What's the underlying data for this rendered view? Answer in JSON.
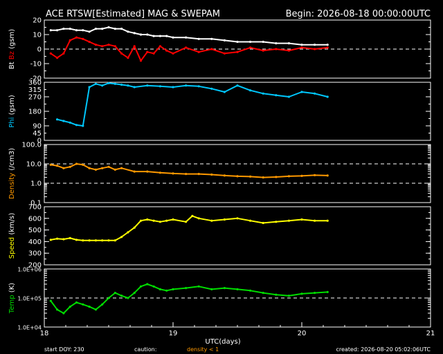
{
  "header": {
    "title": "ACE RTSW[Estimated] MAG & SWEPAM",
    "begin": "Begin: 2026-08-18 00:00:00UTC"
  },
  "footer": {
    "start_doy": "start DOY: 230",
    "caution": "caution:",
    "density_note": "density < 1",
    "created": "created: 2026-08-20 05:02:06UTC"
  },
  "colors": {
    "bt": "#ffffff",
    "bz": "#ff0000",
    "phi": "#00c8ff",
    "density": "#ff9900",
    "speed": "#ffff00",
    "temp": "#00dd00",
    "frame": "#ffffff",
    "background": "#000000"
  },
  "chart_data": {
    "type": "line",
    "x_axis": {
      "label": "UTC(days)",
      "range": [
        18,
        21
      ],
      "ticks": [
        18,
        19,
        20,
        21
      ],
      "tick_labels": [
        "18",
        "19",
        "20",
        "21"
      ]
    },
    "panels": [
      {
        "id": "mag",
        "ylabel_parts": [
          {
            "text": "Bt",
            "color": "#ffffff"
          },
          {
            "text": "Bz",
            "color": "#ff0000"
          },
          {
            "text": "(gsm)",
            "color": "#ffffff"
          }
        ],
        "scale": "linear",
        "ylim": [
          -20,
          20
        ],
        "ticks": [
          -20,
          -10,
          0,
          10,
          20
        ],
        "tick_labels": [
          "-20",
          "-10",
          "0",
          "10",
          "20"
        ],
        "ref_lines": [
          0
        ],
        "series": [
          {
            "name": "Bt",
            "color": "#ffffff",
            "x": [
              18.05,
              18.1,
              18.15,
              18.2,
              18.25,
              18.3,
              18.35,
              18.4,
              18.45,
              18.5,
              18.55,
              18.6,
              18.65,
              18.7,
              18.75,
              18.8,
              18.85,
              18.9,
              18.95,
              19.0,
              19.1,
              19.2,
              19.3,
              19.4,
              19.5,
              19.6,
              19.7,
              19.8,
              19.9,
              20.0,
              20.1,
              20.2
            ],
            "y": [
              13,
              13,
              14,
              14,
              13,
              13,
              12,
              14,
              14,
              15,
              14,
              14,
              12,
              11,
              10,
              10,
              9,
              9,
              9,
              8,
              8,
              7,
              7,
              6,
              5,
              5,
              5,
              4,
              4,
              3,
              3,
              3
            ]
          },
          {
            "name": "Bz",
            "color": "#ff0000",
            "x": [
              18.05,
              18.1,
              18.15,
              18.2,
              18.25,
              18.3,
              18.35,
              18.4,
              18.45,
              18.5,
              18.55,
              18.6,
              18.65,
              18.7,
              18.75,
              18.8,
              18.85,
              18.9,
              18.95,
              19.0,
              19.1,
              19.2,
              19.3,
              19.4,
              19.5,
              19.6,
              19.7,
              19.8,
              19.9,
              20.0,
              20.1,
              20.2
            ],
            "y": [
              -3,
              -6,
              -3,
              6,
              8,
              7,
              5,
              3,
              2,
              3,
              2,
              -3,
              -6,
              2,
              -8,
              -2,
              -3,
              2,
              -1,
              -3,
              1,
              -2,
              0,
              -3,
              -2,
              1,
              -1,
              0,
              -1,
              1,
              0,
              1
            ]
          }
        ]
      },
      {
        "id": "phi",
        "ylabel_parts": [
          {
            "text": "Phi",
            "color": "#00c8ff"
          },
          {
            "text": "(gsm)",
            "color": "#ffffff"
          }
        ],
        "scale": "linear",
        "ylim": [
          0,
          360
        ],
        "ticks": [
          0,
          90,
          180,
          270,
          360
        ],
        "tick_labels": [
          "0",
          "90",
          "180",
          "270",
          "360"
        ],
        "extra_tick_labels": [
          {
            "value": 315,
            "label": "315"
          },
          {
            "value": 45,
            "label": "45"
          }
        ],
        "ref_lines": [],
        "series": [
          {
            "name": "Phi",
            "color": "#00c8ff",
            "x": [
              18.1,
              18.15,
              18.2,
              18.25,
              18.3,
              18.35,
              18.4,
              18.45,
              18.5,
              18.55,
              18.6,
              18.65,
              18.7,
              18.8,
              18.9,
              19.0,
              19.1,
              19.2,
              19.3,
              19.4,
              19.5,
              19.6,
              19.7,
              19.8,
              19.9,
              20.0,
              20.1,
              20.2
            ],
            "y": [
              130,
              120,
              110,
              95,
              90,
              330,
              350,
              340,
              355,
              350,
              345,
              340,
              330,
              340,
              335,
              330,
              340,
              335,
              320,
              300,
              340,
              310,
              290,
              280,
              270,
              300,
              290,
              270
            ]
          }
        ]
      },
      {
        "id": "density",
        "ylabel_parts": [
          {
            "text": "Density",
            "color": "#ff9900"
          },
          {
            "text": "(/cm3)",
            "color": "#ffffff"
          }
        ],
        "scale": "log",
        "ylim": [
          0.1,
          100
        ],
        "ticks": [
          0.1,
          1,
          10,
          100
        ],
        "tick_labels": [
          "0.1",
          "1.0",
          "10.0",
          "100.0"
        ],
        "ref_lines": [
          10,
          1
        ],
        "series": [
          {
            "name": "Density",
            "color": "#ff9900",
            "x": [
              18.05,
              18.1,
              18.15,
              18.2,
              18.25,
              18.3,
              18.35,
              18.4,
              18.45,
              18.5,
              18.55,
              18.6,
              18.7,
              18.8,
              18.9,
              19.0,
              19.1,
              19.2,
              19.3,
              19.4,
              19.5,
              19.6,
              19.7,
              19.8,
              19.9,
              20.0,
              20.1,
              20.2
            ],
            "y": [
              9,
              8,
              6,
              7,
              10,
              9,
              6,
              5,
              6,
              7,
              5,
              6,
              4,
              4,
              3.5,
              3.2,
              3,
              3,
              2.8,
              2.5,
              2.3,
              2.2,
              2,
              2.1,
              2.3,
              2.4,
              2.6,
              2.5
            ]
          }
        ]
      },
      {
        "id": "speed",
        "ylabel_parts": [
          {
            "text": "Speed",
            "color": "#ffff00"
          },
          {
            "text": "(km/s)",
            "color": "#ffffff"
          }
        ],
        "scale": "linear",
        "ylim": [
          200,
          700
        ],
        "ticks": [
          200,
          300,
          400,
          500,
          600,
          700
        ],
        "tick_labels": [
          "200",
          "300",
          "400",
          "500",
          "600",
          "700"
        ],
        "ref_lines": [],
        "series": [
          {
            "name": "Speed",
            "color": "#ffff00",
            "x": [
              18.05,
              18.1,
              18.15,
              18.2,
              18.25,
              18.3,
              18.35,
              18.4,
              18.45,
              18.5,
              18.55,
              18.6,
              18.65,
              18.7,
              18.75,
              18.8,
              18.85,
              18.9,
              18.95,
              19.0,
              19.1,
              19.15,
              19.2,
              19.3,
              19.4,
              19.5,
              19.6,
              19.7,
              19.8,
              19.9,
              20.0,
              20.1,
              20.2
            ],
            "y": [
              415,
              425,
              420,
              430,
              415,
              410,
              410,
              410,
              410,
              410,
              410,
              440,
              480,
              520,
              580,
              590,
              580,
              570,
              580,
              590,
              570,
              620,
              600,
              580,
              590,
              600,
              580,
              560,
              570,
              580,
              590,
              580,
              580
            ]
          }
        ]
      },
      {
        "id": "temp",
        "ylabel_parts": [
          {
            "text": "Temp",
            "color": "#00dd00"
          },
          {
            "text": "(K)",
            "color": "#ffffff"
          }
        ],
        "scale": "log",
        "ylim": [
          10000,
          1000000
        ],
        "ticks": [
          10000,
          100000,
          1000000
        ],
        "tick_labels": [
          "1.0E+04",
          "1.0E+05",
          "1.0E+06"
        ],
        "ref_lines": [
          100000
        ],
        "series": [
          {
            "name": "Temp",
            "color": "#00dd00",
            "x": [
              18.05,
              18.1,
              18.15,
              18.2,
              18.25,
              18.3,
              18.35,
              18.4,
              18.45,
              18.5,
              18.55,
              18.6,
              18.65,
              18.7,
              18.75,
              18.8,
              18.85,
              18.9,
              18.95,
              19.0,
              19.1,
              19.2,
              19.3,
              19.4,
              19.5,
              19.6,
              19.7,
              19.8,
              19.9,
              20.0,
              20.1,
              20.2
            ],
            "y": [
              80000,
              40000,
              30000,
              50000,
              70000,
              60000,
              50000,
              40000,
              60000,
              100000,
              150000,
              120000,
              100000,
              150000,
              250000,
              300000,
              250000,
              200000,
              180000,
              200000,
              220000,
              250000,
              200000,
              220000,
              200000,
              180000,
              150000,
              130000,
              120000,
              140000,
              150000,
              160000
            ]
          }
        ]
      }
    ]
  }
}
